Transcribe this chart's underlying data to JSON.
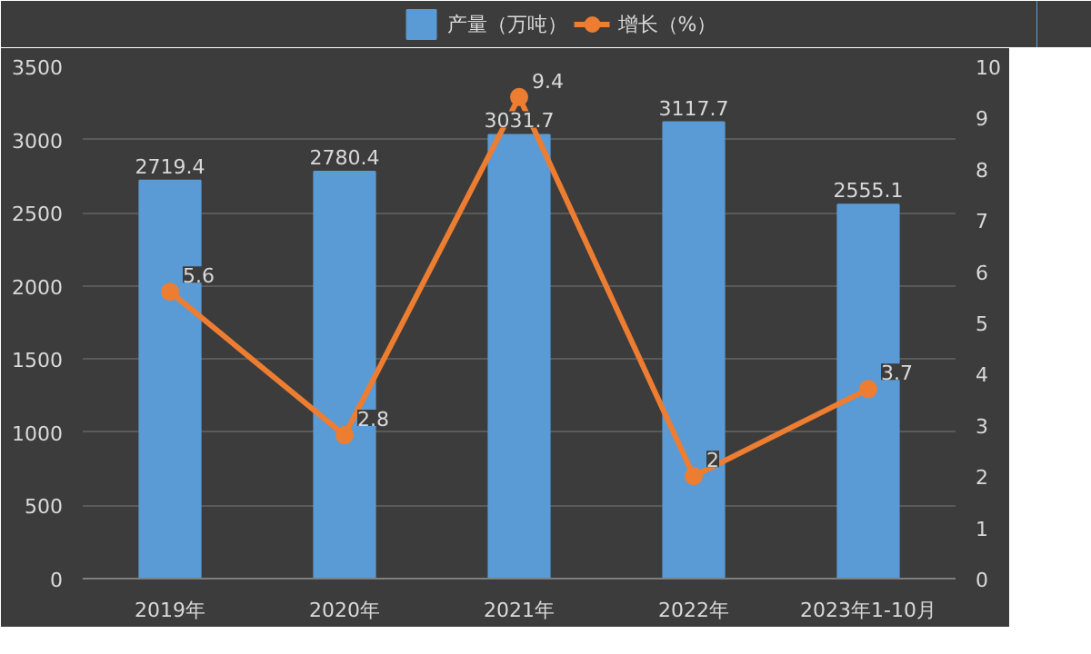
{
  "chart_data": {
    "type": "bar",
    "categories": [
      "2019年",
      "2020年",
      "2021年",
      "2022年",
      "2023年1-10月"
    ],
    "series": [
      {
        "name": "产量（万吨）",
        "color": "#5b9bd5",
        "values": [
          2719.4,
          2780.4,
          3031.7,
          3117.7,
          2555.1
        ]
      },
      {
        "name": "增长（%）",
        "type": "line",
        "axis": "y2",
        "color": "#ed7d31",
        "values": [
          5.6,
          2.8,
          9.4,
          2,
          3.7
        ]
      }
    ],
    "ylim": [
      0,
      3500
    ],
    "yticks": [
      0,
      500,
      1000,
      1500,
      2000,
      2500,
      3000,
      3500
    ],
    "y2lim": [
      0,
      10
    ],
    "y2ticks": [
      0,
      1,
      2,
      3,
      4,
      5,
      6,
      7,
      8,
      9,
      10
    ],
    "grid": "y",
    "legend": "top",
    "marker": "circle",
    "line_style": "solid",
    "data_labels": true
  }
}
